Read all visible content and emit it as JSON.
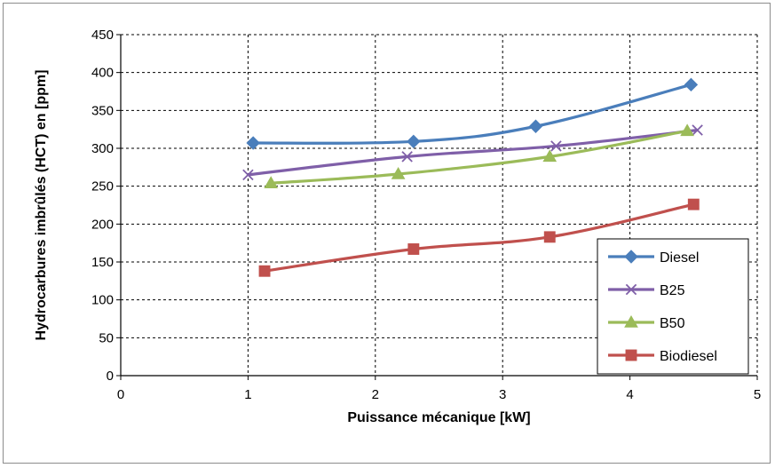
{
  "chart_data": {
    "type": "line",
    "title": "",
    "xlabel": "Puissance mécanique [kW]",
    "ylabel": "Hydrocarbures imbrûlés (HCT) en [ppm]",
    "xlim": [
      0,
      5
    ],
    "ylim": [
      0,
      450
    ],
    "x_ticks": [
      0,
      1,
      2,
      3,
      4,
      5
    ],
    "y_ticks": [
      0,
      50,
      100,
      150,
      200,
      250,
      300,
      350,
      400,
      450
    ],
    "grid": true,
    "grid_style": "dashed",
    "legend_position": "bottom-right",
    "series": [
      {
        "name": "Diesel",
        "color": "#4A7EBB",
        "marker": "diamond",
        "x": [
          1.04,
          2.3,
          3.26,
          4.48
        ],
        "y": [
          307,
          309,
          329,
          384
        ]
      },
      {
        "name": "B25",
        "color": "#7F5FA8",
        "marker": "x",
        "x": [
          1.0,
          2.25,
          3.42,
          4.53
        ],
        "y": [
          265,
          289,
          303,
          324
        ]
      },
      {
        "name": "B50",
        "color": "#9BBB59",
        "marker": "triangle",
        "x": [
          1.18,
          2.18,
          3.37,
          4.45
        ],
        "y": [
          254,
          266,
          289,
          323
        ]
      },
      {
        "name": "Biodiesel",
        "color": "#C0504D",
        "marker": "square",
        "x": [
          1.13,
          2.3,
          3.37,
          4.5
        ],
        "y": [
          138,
          167,
          183,
          226
        ]
      }
    ]
  }
}
